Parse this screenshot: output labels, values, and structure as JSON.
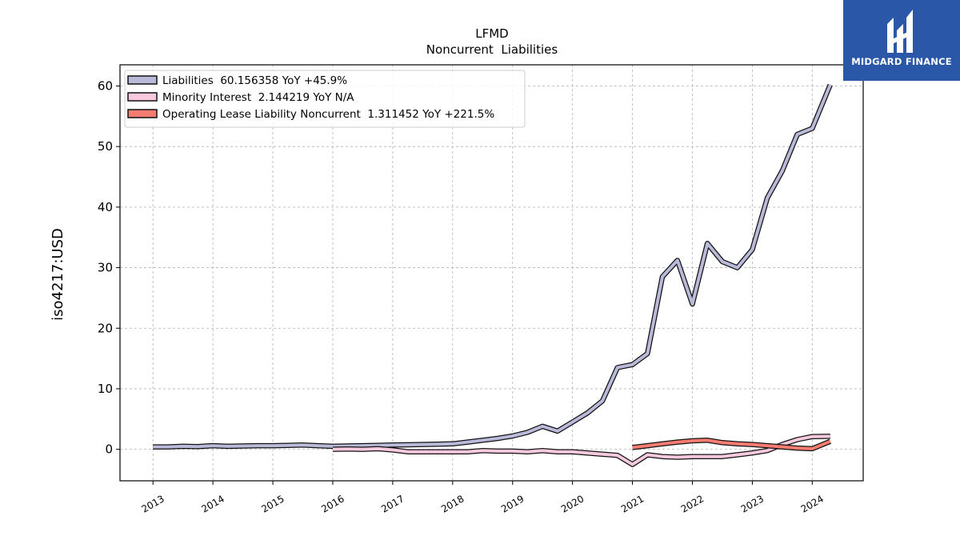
{
  "brand": {
    "name": "MIDGARD FINANCE",
    "background": "#2a57a8",
    "icon": "midgard-logo-icon"
  },
  "chart_data": {
    "type": "line",
    "title": "LFMD",
    "subtitle": "Noncurrent  Liabilities",
    "xlabel": "",
    "ylabel": "iso4217:USD",
    "xlim": [
      2012.45,
      2024.85
    ],
    "ylim": [
      -5.2,
      63.5
    ],
    "grid": true,
    "legend_position": "top-left",
    "x_ticks": [
      "2013",
      "2014",
      "2015",
      "2016",
      "2017",
      "2018",
      "2019",
      "2020",
      "2021",
      "2022",
      "2023",
      "2024"
    ],
    "y_ticks": [
      "0",
      "10",
      "20",
      "30",
      "40",
      "50",
      "60"
    ],
    "series": [
      {
        "name": "Liabilities",
        "legend": "Liabilities  60.156358 YoY +45.9%",
        "color": "#b9b9d9",
        "x": [
          2013.0,
          2013.25,
          2013.5,
          2013.75,
          2014.0,
          2014.25,
          2014.5,
          2014.75,
          2015.0,
          2015.25,
          2015.5,
          2015.75,
          2016.0,
          2016.25,
          2016.5,
          2016.75,
          2017.0,
          2017.25,
          2017.5,
          2017.75,
          2018.0,
          2018.25,
          2018.5,
          2018.75,
          2019.0,
          2019.25,
          2019.5,
          2019.75,
          2020.0,
          2020.25,
          2020.5,
          2020.75,
          2021.0,
          2021.25,
          2021.5,
          2021.75,
          2022.0,
          2022.25,
          2022.5,
          2022.75,
          2023.0,
          2023.25,
          2023.5,
          2023.75,
          2024.0,
          2024.3
        ],
        "values": [
          0.4,
          0.4,
          0.5,
          0.45,
          0.6,
          0.5,
          0.55,
          0.6,
          0.6,
          0.65,
          0.7,
          0.6,
          0.5,
          0.55,
          0.6,
          0.65,
          0.7,
          0.75,
          0.8,
          0.85,
          0.9,
          1.2,
          1.5,
          1.8,
          2.2,
          2.8,
          3.8,
          3.0,
          4.5,
          6.0,
          8.0,
          13.5,
          14.0,
          15.8,
          28.5,
          31.2,
          24.0,
          34.0,
          31.0,
          30.0,
          33.0,
          41.5,
          46.0,
          52.0,
          53.0,
          60.2
        ]
      },
      {
        "name": "Minority Interest",
        "legend": "Minority Interest  2.144219 YoY N/A",
        "color": "#f7c9de",
        "x": [
          2016.0,
          2016.25,
          2016.5,
          2016.75,
          2017.0,
          2017.25,
          2017.5,
          2017.75,
          2018.0,
          2018.25,
          2018.5,
          2018.75,
          2019.0,
          2019.25,
          2019.5,
          2019.75,
          2020.0,
          2020.25,
          2020.5,
          2020.75,
          2021.0,
          2021.25,
          2021.5,
          2021.75,
          2022.0,
          2022.25,
          2022.5,
          2022.75,
          2023.0,
          2023.25,
          2023.5,
          2023.75,
          2024.0,
          2024.3
        ],
        "values": [
          0.0,
          0.05,
          0.0,
          0.1,
          -0.1,
          -0.4,
          -0.4,
          -0.4,
          -0.4,
          -0.4,
          -0.2,
          -0.3,
          -0.3,
          -0.4,
          -0.2,
          -0.4,
          -0.4,
          -0.6,
          -0.8,
          -1.0,
          -2.5,
          -0.9,
          -1.2,
          -1.3,
          -1.2,
          -1.2,
          -1.2,
          -0.9,
          -0.6,
          -0.2,
          0.8,
          1.6,
          2.1,
          2.14
        ]
      },
      {
        "name": "Operating Lease Liability Noncurrent",
        "legend": "Operating Lease Liability Noncurrent  1.311452 YoY +221.5%",
        "color": "#f47c70",
        "x": [
          2021.0,
          2021.25,
          2021.5,
          2021.75,
          2022.0,
          2022.25,
          2022.5,
          2022.75,
          2023.0,
          2023.25,
          2023.5,
          2023.75,
          2024.0,
          2024.3
        ],
        "values": [
          0.3,
          0.6,
          0.9,
          1.2,
          1.4,
          1.5,
          1.1,
          0.9,
          0.8,
          0.6,
          0.4,
          0.2,
          0.1,
          1.31
        ]
      }
    ]
  }
}
